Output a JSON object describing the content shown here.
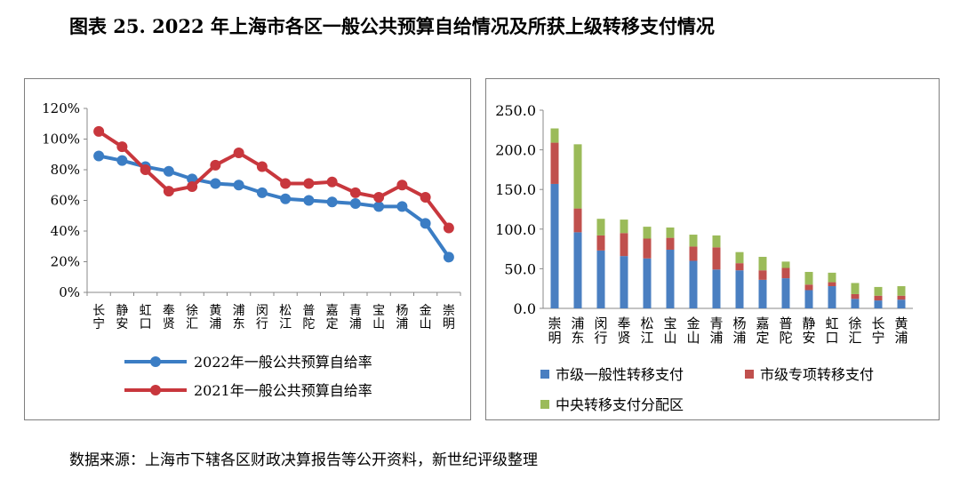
{
  "figure": {
    "title": "图表 25. 2022 年上海市各区一般公共预算自给情况及所获上级转移支付情况",
    "source": "数据来源：上海市下辖各区财政决算报告等公开资料，新世纪评级整理"
  },
  "chart_data": [
    {
      "type": "line",
      "categories": [
        "长宁",
        "静安",
        "虹口",
        "奉贤",
        "徐汇",
        "黄浦",
        "浦东",
        "闵行",
        "松江",
        "普陀",
        "嘉定",
        "青浦",
        "宝山",
        "杨浦",
        "金山",
        "崇明"
      ],
      "y_ticks": [
        "0%",
        "20%",
        "40%",
        "60%",
        "80%",
        "100%",
        "120%"
      ],
      "ylim": [
        0,
        120
      ],
      "legend_position": "bottom",
      "series": [
        {
          "name": "2022年一般公共预算自给率",
          "color": "#3b7dc4",
          "values": [
            89,
            86,
            82,
            79,
            74,
            71,
            70,
            65,
            61,
            60,
            59,
            58,
            56,
            56,
            45,
            23
          ]
        },
        {
          "name": "2021年一般公共预算自给率",
          "color": "#c8373d",
          "values": [
            105,
            95,
            80,
            66,
            69,
            83,
            91,
            82,
            71,
            71,
            72,
            65,
            62,
            70,
            62,
            42
          ]
        }
      ]
    },
    {
      "type": "bar",
      "stacked": true,
      "categories": [
        "崇明",
        "浦东",
        "闵行",
        "奉贤",
        "松江",
        "宝山",
        "金山",
        "青浦",
        "杨浦",
        "嘉定",
        "普陀",
        "静安",
        "虹口",
        "徐汇",
        "长宁",
        "黄浦"
      ],
      "y_ticks": [
        "0.0",
        "50.0",
        "100.0",
        "150.0",
        "200.0",
        "250.0"
      ],
      "ylim": [
        0,
        250
      ],
      "legend_position": "bottom",
      "series": [
        {
          "name": "市级一般性转移支付",
          "color": "#4a7fc1",
          "values": [
            157,
            96,
            73,
            66,
            63,
            74,
            60,
            49,
            48,
            36,
            38,
            23,
            28,
            12,
            10,
            11
          ]
        },
        {
          "name": "市级专项转移支付",
          "color": "#c0504d",
          "values": [
            52,
            30,
            19,
            29,
            25,
            15,
            18,
            28,
            9,
            12,
            13,
            7,
            5,
            6,
            6,
            5
          ]
        },
        {
          "name": "中央转移支付分配区",
          "color": "#9bbb59",
          "values": [
            18,
            81,
            21,
            17,
            15,
            13,
            15,
            15,
            14,
            17,
            8,
            16,
            12,
            14,
            11,
            12
          ]
        }
      ]
    }
  ]
}
